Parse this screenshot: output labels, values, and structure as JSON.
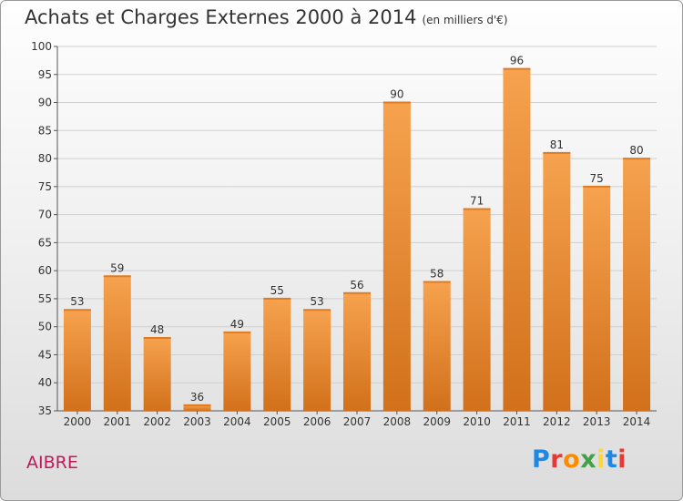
{
  "header": {
    "title": "Achats et Charges Externes 2000 à 2014",
    "unit_note": "(en milliers d'€)"
  },
  "commune_name": "AIBRE",
  "logo": {
    "text": "Proxiti",
    "letter_colors": [
      "#1e88e5",
      "#e53935",
      "#fb8c00",
      "#43a047",
      "#fdd835",
      "#1e88e5",
      "#e53935"
    ]
  },
  "chart_data": {
    "type": "bar",
    "title": "Achats et Charges Externes 2000 à 2014",
    "categories": [
      "2000",
      "2001",
      "2002",
      "2003",
      "2004",
      "2005",
      "2006",
      "2007",
      "2008",
      "2009",
      "2010",
      "2011",
      "2012",
      "2013",
      "2014"
    ],
    "values": [
      53,
      59,
      48,
      36,
      49,
      55,
      53,
      56,
      90,
      58,
      71,
      96,
      81,
      75,
      80
    ],
    "ylim": [
      35,
      100
    ],
    "yticks": [
      35,
      40,
      45,
      50,
      55,
      60,
      65,
      70,
      75,
      80,
      85,
      90,
      95,
      100
    ],
    "grid": true,
    "bar_color_top": "#f6a24e",
    "bar_color_bottom": "#d2701b"
  }
}
